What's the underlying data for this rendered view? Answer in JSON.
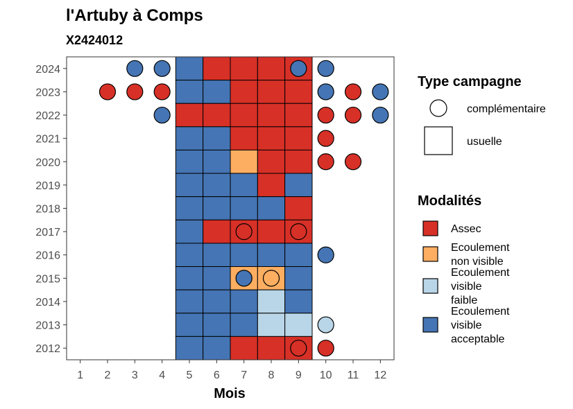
{
  "chart_data": {
    "type": "heatmap",
    "title": "l'Artuby à Comps",
    "subtitle": "X2424012",
    "xlabel": "Mois",
    "ylabel": "",
    "x_ticks": [
      "1",
      "2",
      "3",
      "4",
      "5",
      "6",
      "7",
      "8",
      "9",
      "10",
      "11",
      "12"
    ],
    "y_ticks": [
      "2012",
      "2013",
      "2014",
      "2015",
      "2016",
      "2017",
      "2018",
      "2019",
      "2020",
      "2021",
      "2022",
      "2023",
      "2024"
    ],
    "xlim": [
      0.5,
      12.5
    ],
    "ylim": [
      2011.5,
      2024.5
    ],
    "colors": {
      "Assec": "#d73027",
      "Ecoulement non visible": "#fdae61",
      "Ecoulement visible faible": "#b9d6e8",
      "Ecoulement visible acceptable": "#4575b4"
    },
    "legend_type": {
      "title": "Type campagne",
      "items": [
        {
          "key": "complementaire",
          "label": "complémentaire",
          "shape": "circle"
        },
        {
          "key": "usuelle",
          "label": "usuelle",
          "shape": "square"
        }
      ]
    },
    "legend_modalites": {
      "title": "Modalités",
      "items": [
        {
          "key": "Assec",
          "lines": [
            "Assec"
          ]
        },
        {
          "key": "Ecoulement non visible",
          "lines": [
            "Ecoulement",
            "non visible"
          ]
        },
        {
          "key": "Ecoulement visible faible",
          "lines": [
            "Ecoulement",
            "visible",
            "faible"
          ]
        },
        {
          "key": "Ecoulement visible acceptable",
          "lines": [
            "Ecoulement",
            "visible",
            "acceptable"
          ]
        }
      ]
    },
    "usuelle": [
      {
        "year": 2024,
        "month": 5,
        "modalite": "Ecoulement visible acceptable"
      },
      {
        "year": 2024,
        "month": 6,
        "modalite": "Assec"
      },
      {
        "year": 2024,
        "month": 7,
        "modalite": "Assec"
      },
      {
        "year": 2024,
        "month": 8,
        "modalite": "Assec"
      },
      {
        "year": 2024,
        "month": 9,
        "modalite": "Assec"
      },
      {
        "year": 2023,
        "month": 5,
        "modalite": "Ecoulement visible acceptable"
      },
      {
        "year": 2023,
        "month": 6,
        "modalite": "Ecoulement visible acceptable"
      },
      {
        "year": 2023,
        "month": 7,
        "modalite": "Assec"
      },
      {
        "year": 2023,
        "month": 8,
        "modalite": "Assec"
      },
      {
        "year": 2023,
        "month": 9,
        "modalite": "Assec"
      },
      {
        "year": 2022,
        "month": 5,
        "modalite": "Assec"
      },
      {
        "year": 2022,
        "month": 6,
        "modalite": "Assec"
      },
      {
        "year": 2022,
        "month": 7,
        "modalite": "Assec"
      },
      {
        "year": 2022,
        "month": 8,
        "modalite": "Assec"
      },
      {
        "year": 2022,
        "month": 9,
        "modalite": "Assec"
      },
      {
        "year": 2021,
        "month": 5,
        "modalite": "Ecoulement visible acceptable"
      },
      {
        "year": 2021,
        "month": 6,
        "modalite": "Ecoulement visible acceptable"
      },
      {
        "year": 2021,
        "month": 7,
        "modalite": "Assec"
      },
      {
        "year": 2021,
        "month": 8,
        "modalite": "Assec"
      },
      {
        "year": 2021,
        "month": 9,
        "modalite": "Assec"
      },
      {
        "year": 2020,
        "month": 5,
        "modalite": "Ecoulement visible acceptable"
      },
      {
        "year": 2020,
        "month": 6,
        "modalite": "Ecoulement visible acceptable"
      },
      {
        "year": 2020,
        "month": 7,
        "modalite": "Ecoulement non visible"
      },
      {
        "year": 2020,
        "month": 8,
        "modalite": "Assec"
      },
      {
        "year": 2020,
        "month": 9,
        "modalite": "Assec"
      },
      {
        "year": 2019,
        "month": 5,
        "modalite": "Ecoulement visible acceptable"
      },
      {
        "year": 2019,
        "month": 6,
        "modalite": "Ecoulement visible acceptable"
      },
      {
        "year": 2019,
        "month": 7,
        "modalite": "Ecoulement visible acceptable"
      },
      {
        "year": 2019,
        "month": 8,
        "modalite": "Assec"
      },
      {
        "year": 2019,
        "month": 9,
        "modalite": "Ecoulement visible acceptable"
      },
      {
        "year": 2018,
        "month": 5,
        "modalite": "Ecoulement visible acceptable"
      },
      {
        "year": 2018,
        "month": 6,
        "modalite": "Ecoulement visible acceptable"
      },
      {
        "year": 2018,
        "month": 7,
        "modalite": "Ecoulement visible acceptable"
      },
      {
        "year": 2018,
        "month": 8,
        "modalite": "Ecoulement visible acceptable"
      },
      {
        "year": 2018,
        "month": 9,
        "modalite": "Assec"
      },
      {
        "year": 2017,
        "month": 5,
        "modalite": "Ecoulement visible acceptable"
      },
      {
        "year": 2017,
        "month": 6,
        "modalite": "Assec"
      },
      {
        "year": 2017,
        "month": 7,
        "modalite": "Assec"
      },
      {
        "year": 2017,
        "month": 8,
        "modalite": "Assec"
      },
      {
        "year": 2017,
        "month": 9,
        "modalite": "Assec"
      },
      {
        "year": 2016,
        "month": 5,
        "modalite": "Ecoulement visible acceptable"
      },
      {
        "year": 2016,
        "month": 6,
        "modalite": "Ecoulement visible acceptable"
      },
      {
        "year": 2016,
        "month": 7,
        "modalite": "Ecoulement visible acceptable"
      },
      {
        "year": 2016,
        "month": 8,
        "modalite": "Ecoulement visible acceptable"
      },
      {
        "year": 2016,
        "month": 9,
        "modalite": "Ecoulement visible acceptable"
      },
      {
        "year": 2015,
        "month": 5,
        "modalite": "Ecoulement visible acceptable"
      },
      {
        "year": 2015,
        "month": 6,
        "modalite": "Ecoulement visible acceptable"
      },
      {
        "year": 2015,
        "month": 7,
        "modalite": "Ecoulement non visible"
      },
      {
        "year": 2015,
        "month": 8,
        "modalite": "Ecoulement non visible"
      },
      {
        "year": 2015,
        "month": 9,
        "modalite": "Ecoulement visible acceptable"
      },
      {
        "year": 2014,
        "month": 5,
        "modalite": "Ecoulement visible acceptable"
      },
      {
        "year": 2014,
        "month": 6,
        "modalite": "Ecoulement visible acceptable"
      },
      {
        "year": 2014,
        "month": 7,
        "modalite": "Ecoulement visible acceptable"
      },
      {
        "year": 2014,
        "month": 8,
        "modalite": "Ecoulement visible faible"
      },
      {
        "year": 2014,
        "month": 9,
        "modalite": "Ecoulement visible acceptable"
      },
      {
        "year": 2013,
        "month": 5,
        "modalite": "Ecoulement visible acceptable"
      },
      {
        "year": 2013,
        "month": 6,
        "modalite": "Ecoulement visible acceptable"
      },
      {
        "year": 2013,
        "month": 7,
        "modalite": "Ecoulement visible acceptable"
      },
      {
        "year": 2013,
        "month": 8,
        "modalite": "Ecoulement visible faible"
      },
      {
        "year": 2013,
        "month": 9,
        "modalite": "Ecoulement visible faible"
      },
      {
        "year": 2012,
        "month": 5,
        "modalite": "Ecoulement visible acceptable"
      },
      {
        "year": 2012,
        "month": 6,
        "modalite": "Ecoulement visible acceptable"
      },
      {
        "year": 2012,
        "month": 7,
        "modalite": "Assec"
      },
      {
        "year": 2012,
        "month": 8,
        "modalite": "Assec"
      },
      {
        "year": 2012,
        "month": 9,
        "modalite": "Assec"
      }
    ],
    "complementaire": [
      {
        "year": 2024,
        "month": 3,
        "modalite": "Ecoulement visible acceptable"
      },
      {
        "year": 2024,
        "month": 4,
        "modalite": "Ecoulement visible acceptable"
      },
      {
        "year": 2024,
        "month": 9,
        "modalite": "Ecoulement visible acceptable"
      },
      {
        "year": 2024,
        "month": 10,
        "modalite": "Ecoulement visible acceptable"
      },
      {
        "year": 2023,
        "month": 2,
        "modalite": "Assec"
      },
      {
        "year": 2023,
        "month": 3,
        "modalite": "Assec"
      },
      {
        "year": 2023,
        "month": 4,
        "modalite": "Assec"
      },
      {
        "year": 2023,
        "month": 10,
        "modalite": "Ecoulement visible acceptable"
      },
      {
        "year": 2023,
        "month": 11,
        "modalite": "Assec"
      },
      {
        "year": 2023,
        "month": 12,
        "modalite": "Ecoulement visible acceptable"
      },
      {
        "year": 2022,
        "month": 4,
        "modalite": "Ecoulement visible acceptable"
      },
      {
        "year": 2022,
        "month": 10,
        "modalite": "Assec"
      },
      {
        "year": 2022,
        "month": 11,
        "modalite": "Assec"
      },
      {
        "year": 2022,
        "month": 12,
        "modalite": "Ecoulement visible acceptable"
      },
      {
        "year": 2021,
        "month": 10,
        "modalite": "Assec"
      },
      {
        "year": 2020,
        "month": 10,
        "modalite": "Assec"
      },
      {
        "year": 2020,
        "month": 11,
        "modalite": "Assec"
      },
      {
        "year": 2017,
        "month": 7,
        "modalite": "Assec"
      },
      {
        "year": 2017,
        "month": 9,
        "modalite": "Assec"
      },
      {
        "year": 2016,
        "month": 10,
        "modalite": "Ecoulement visible acceptable"
      },
      {
        "year": 2015,
        "month": 7,
        "modalite": "Ecoulement visible acceptable"
      },
      {
        "year": 2015,
        "month": 8,
        "modalite": "Ecoulement non visible"
      },
      {
        "year": 2013,
        "month": 10,
        "modalite": "Ecoulement visible faible"
      },
      {
        "year": 2012,
        "month": 9,
        "modalite": "Assec"
      },
      {
        "year": 2012,
        "month": 10,
        "modalite": "Assec"
      }
    ]
  }
}
